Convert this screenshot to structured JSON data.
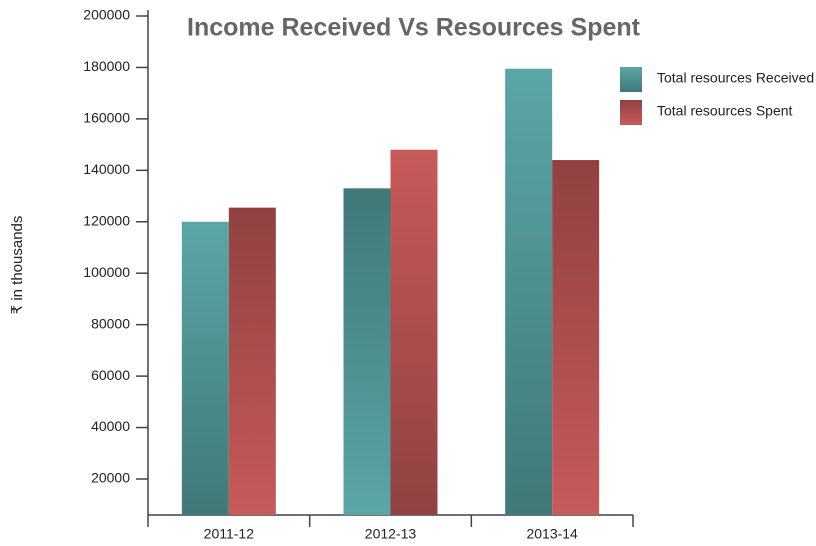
{
  "chart_data": {
    "type": "bar",
    "title": "Income Received Vs Resources Spent",
    "y_label": "₹ in thousands",
    "categories": [
      "2011-12",
      "2012-13",
      "2013-14"
    ],
    "series": [
      {
        "name": "Total resources Received",
        "color": "#5aa6a6",
        "values": [
          120000,
          133000,
          179500
        ]
      },
      {
        "name": "Total resources Spent",
        "color": "#c85a5a",
        "values": [
          125500,
          148000,
          144000
        ]
      }
    ],
    "ylim": [
      6000,
      200000
    ],
    "yticks": [
      20000,
      40000,
      60000,
      80000,
      100000,
      120000,
      140000,
      160000,
      180000,
      200000
    ],
    "legend": "upper right"
  }
}
